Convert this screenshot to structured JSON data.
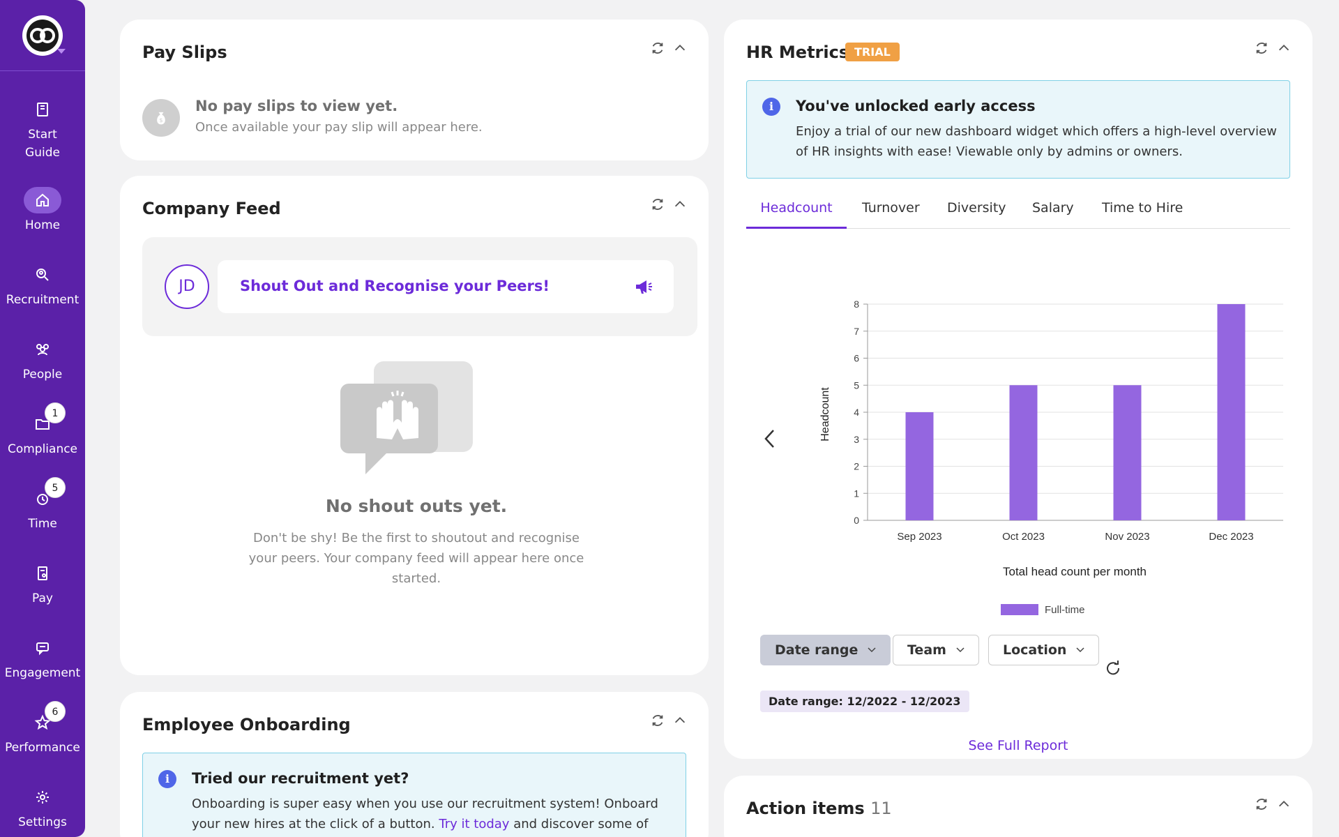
{
  "sidebar": {
    "items": [
      {
        "label_line1": "Start",
        "label_line2": "Guide",
        "icon": "book-icon"
      },
      {
        "label": "Home",
        "icon": "home-icon"
      },
      {
        "label": "Recruitment",
        "icon": "search-person-icon"
      },
      {
        "label": "People",
        "icon": "people-icon"
      },
      {
        "label": "Compliance",
        "icon": "folder-icon",
        "badge": "1"
      },
      {
        "label": "Time",
        "icon": "clock-icon",
        "badge": "5"
      },
      {
        "label": "Pay",
        "icon": "document-icon"
      },
      {
        "label": "Engagement",
        "icon": "chat-icon"
      },
      {
        "label": "Performance",
        "icon": "star-icon",
        "badge": "6"
      },
      {
        "label": "Settings",
        "icon": "gear-icon"
      }
    ]
  },
  "payslips": {
    "title": "Pay Slips",
    "empty_title": "No pay slips to view yet.",
    "empty_sub": "Once available your pay slip will appear here."
  },
  "feed": {
    "title": "Company Feed",
    "avatar_initials": "JD",
    "shout_label": "Shout Out and Recognise your Peers!",
    "empty_title": "No shout outs yet.",
    "empty_desc": "Don't be shy! Be the first to shoutout and recognise your peers. Your company feed will appear here once started."
  },
  "onboarding": {
    "title": "Employee Onboarding",
    "info_title": "Tried our recruitment yet?",
    "info_body_1": "Onboarding is super easy when you use our recruitment system! Onboard your new hires at the click of a button.",
    "info_link": "Try it today",
    "info_body_2": "and discover some of"
  },
  "hr": {
    "title": "HR Metrics",
    "trial_badge": "TRIAL",
    "info_title": "You've unlocked early access",
    "info_body": "Enjoy a trial of our new dashboard widget which offers a high-level overview of HR insights with ease! Viewable only by admins or owners.",
    "tabs": [
      "Headcount",
      "Turnover",
      "Diversity",
      "Salary",
      "Time to Hire"
    ],
    "filters": {
      "date_range": "Date range",
      "team": "Team",
      "location": "Location"
    },
    "chip": "Date range: 12/2022 - 12/2023",
    "see_full": "See Full Report"
  },
  "chart_data": {
    "type": "bar",
    "categories": [
      "Sep 2023",
      "Oct 2023",
      "Nov 2023",
      "Dec 2023"
    ],
    "series": [
      {
        "name": "Full-time",
        "values": [
          4,
          5,
          5,
          8
        ],
        "color": "#9466e0"
      }
    ],
    "ylabel": "Headcount",
    "xlabel": "Total head count per month",
    "ylim": [
      0,
      8
    ],
    "yticks": [
      0,
      1,
      2,
      3,
      4,
      5,
      6,
      7,
      8
    ],
    "grid": true,
    "legend": "bottom"
  },
  "actions": {
    "title": "Action items",
    "count": "11"
  },
  "colors": {
    "brand": "#5b21a8",
    "accent": "#6c2bd9",
    "trial": "#f0a044"
  }
}
